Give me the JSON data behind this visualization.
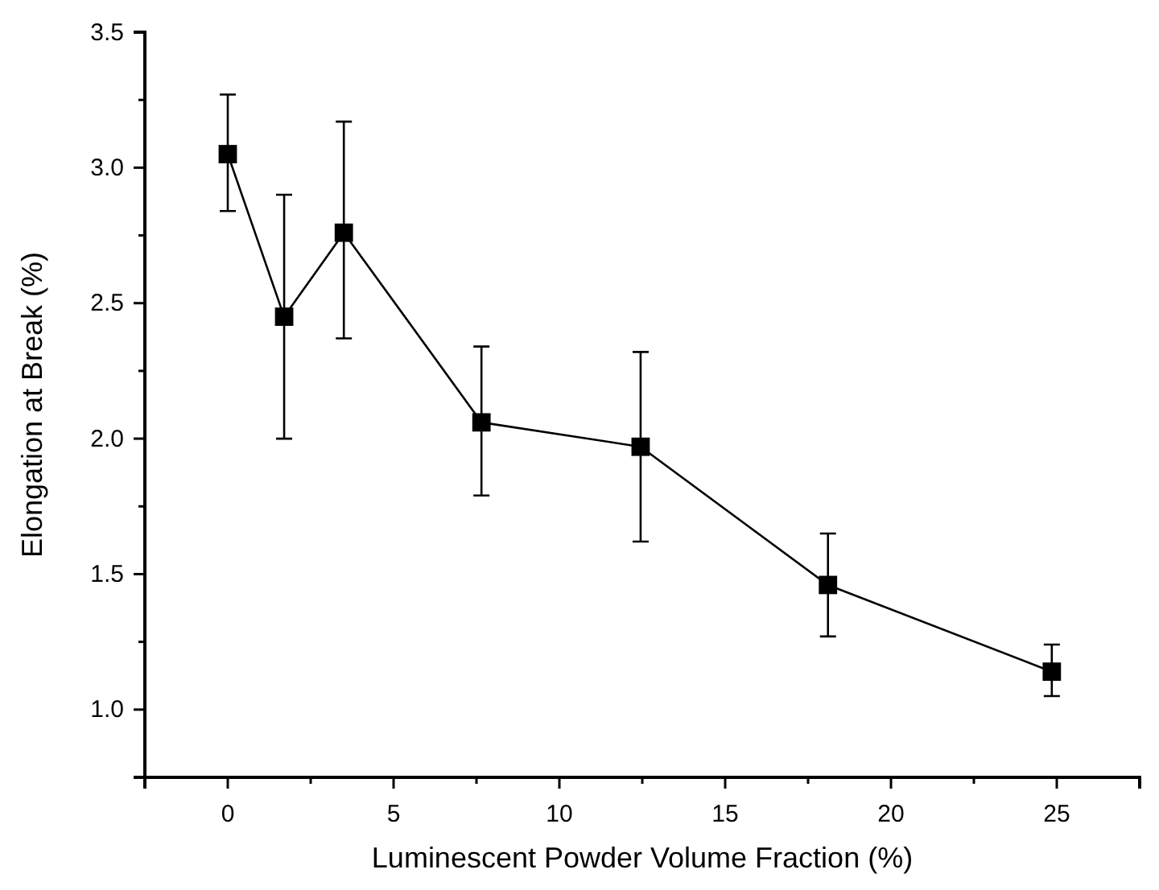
{
  "chart_data": {
    "type": "line",
    "xlabel": "Luminescent Powder Volume Fraction (%)",
    "ylabel": "Elongation at Break (%)",
    "x": [
      0,
      1.7,
      3.5,
      7.65,
      12.45,
      18.1,
      24.85
    ],
    "series": [
      {
        "color": "#000000",
        "values": [
          3.05,
          2.45,
          2.76,
          2.06,
          1.97,
          1.46,
          1.14
        ],
        "errors": [
          [
            2.84,
            3.27
          ],
          [
            2.0,
            2.9
          ],
          [
            2.37,
            3.17
          ],
          [
            1.79,
            2.34
          ],
          [
            1.62,
            2.32
          ],
          [
            1.27,
            1.65
          ],
          [
            1.05,
            1.24
          ]
        ]
      }
    ],
    "xlim": [
      -2.5,
      27.5
    ],
    "ylim": [
      0.75,
      3.5
    ],
    "xticks": [
      {
        "value": -2.5,
        "label": null
      },
      0,
      {
        "value": 2.5,
        "label": null
      },
      5,
      {
        "value": 7.5,
        "label": null
      },
      10,
      {
        "value": 12.5,
        "label": null
      },
      15,
      {
        "value": 17.5,
        "label": null
      },
      20,
      {
        "value": 22.5,
        "label": null
      },
      25,
      {
        "value": 27.5,
        "label": null
      }
    ],
    "yticks": [
      {
        "value": 0.75,
        "label": null
      },
      {
        "value": 1.0,
        "label": "1.0"
      },
      {
        "value": 1.25,
        "label": null
      },
      {
        "value": 1.5,
        "label": "1.5"
      },
      {
        "value": 1.75,
        "label": null
      },
      {
        "value": 2.0,
        "label": "2.0"
      },
      {
        "value": 2.25,
        "label": null
      },
      {
        "value": 2.5,
        "label": "2.5"
      },
      {
        "value": 2.75,
        "label": null
      },
      {
        "value": 3.0,
        "label": "3.0"
      },
      {
        "value": 3.25,
        "label": null
      },
      {
        "value": 3.5,
        "label": "3.5"
      }
    ],
    "marker": "square",
    "line_style": "solid"
  }
}
